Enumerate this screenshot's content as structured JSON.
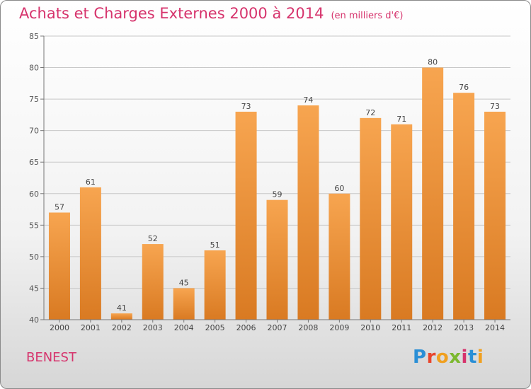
{
  "header": {
    "title": "Achats et Charges Externes 2000 à 2014",
    "unit": "(en milliers d'€)"
  },
  "footer": {
    "commune": "BENEST",
    "brand": "Proxiti"
  },
  "colors": {
    "title": "#d6336c",
    "bar_light": "#f7a550",
    "bar_dark": "#d97a22",
    "grid": "#c8c8c8"
  },
  "chart_data": {
    "type": "bar",
    "title": "Achats et Charges Externes 2000 à 2014",
    "subtitle": "(en milliers d'€)",
    "xlabel": "",
    "ylabel": "",
    "categories": [
      "2000",
      "2001",
      "2002",
      "2003",
      "2004",
      "2005",
      "2006",
      "2007",
      "2008",
      "2009",
      "2010",
      "2011",
      "2012",
      "2013",
      "2014"
    ],
    "values": [
      57,
      61,
      41,
      52,
      45,
      51,
      73,
      59,
      74,
      60,
      72,
      71,
      80,
      76,
      73
    ],
    "ylim": [
      40,
      85
    ],
    "yticks": [
      40,
      45,
      50,
      55,
      60,
      65,
      70,
      75,
      80,
      85
    ],
    "grid": true,
    "data_labels": true
  }
}
